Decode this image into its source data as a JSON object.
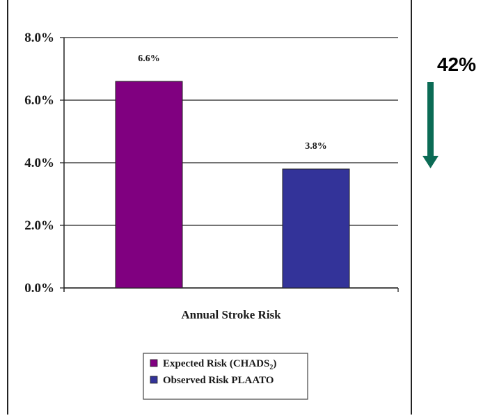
{
  "chart_data": {
    "type": "bar",
    "title": "",
    "categories": [
      "Expected Risk (CHADS2)",
      "Observed Risk PLAATO"
    ],
    "values": [
      6.6,
      3.8
    ],
    "value_labels": [
      "6.6%",
      "3.8%"
    ],
    "bar_colors": [
      "#800080",
      "#333399"
    ],
    "xlabel": "Annual Stroke Risk",
    "ylabel": "",
    "ylim": [
      0,
      8
    ],
    "yticks": [
      0,
      2,
      4,
      6,
      8
    ],
    "ytick_labels": [
      "0.0%",
      "2.0%",
      "4.0%",
      "6.0%",
      "8.0%"
    ],
    "grid": true,
    "legend": {
      "placement": "bottom-center",
      "entries": [
        {
          "label": "Expected Risk (CHADS",
          "subscript": "2",
          "suffix": ")",
          "color": "#800080"
        },
        {
          "label": "Observed Risk PLAATO",
          "subscript": "",
          "suffix": "",
          "color": "#333399"
        }
      ]
    },
    "annotation": {
      "text": "42%",
      "arrow_direction": "down",
      "arrow_color": "#0b6b55"
    }
  }
}
